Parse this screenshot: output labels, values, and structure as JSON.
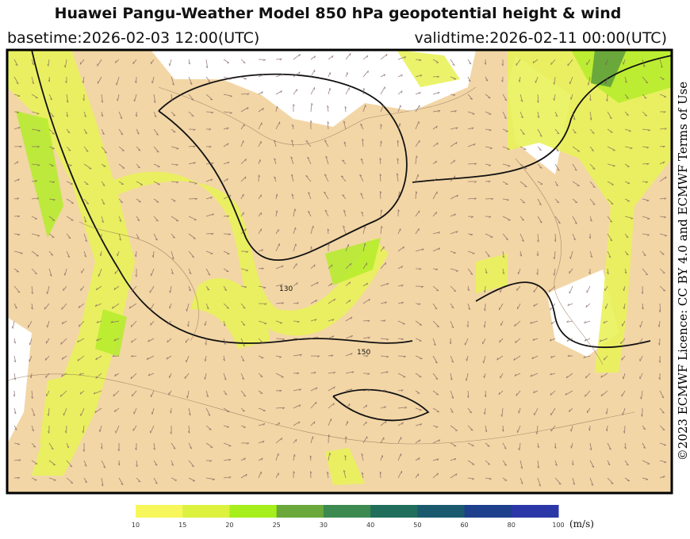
{
  "header": {
    "title": "Huawei Pangu-Weather Model 850 hPa geopotential height & wind",
    "basetime": "basetime:2026-02-03 12:00(UTC)",
    "validtime": "validtime:2026-02-11 00:00(UTC)"
  },
  "map": {
    "contour_labels": [
      "150",
      "130"
    ]
  },
  "credit": "©2023 ECMWF Licence: CC BY 4.0 and ECMWF Terms of Use",
  "colorbar": {
    "ticks": [
      10,
      15,
      20,
      25,
      30,
      40,
      50,
      60,
      80,
      100
    ],
    "colors": [
      "#f7f75c",
      "#dcf23f",
      "#a6ee1c",
      "#6aa83c",
      "#3c8a50",
      "#216e5c",
      "#1b5a6e",
      "#1e3f8c",
      "#2b37a6"
    ],
    "unit": "(m/s)"
  }
}
